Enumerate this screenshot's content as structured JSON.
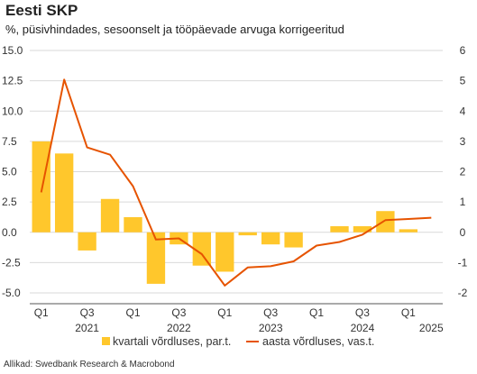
{
  "title": "Eesti SKP",
  "subtitle": "%, püsivhindades, sesoonselt ja tööpäevade arvuga korrigeeritud",
  "source": "Allikad: Swedbank Research & Macrobond",
  "colors": {
    "bar": "#FFC72C",
    "line": "#E65300",
    "grid": "#d9d9d9",
    "axis": "#555555"
  },
  "chart_data": {
    "type": "bar",
    "categories": [
      "2021 Q1",
      "2021 Q2",
      "2021 Q3",
      "2021 Q4",
      "2022 Q1",
      "2022 Q2",
      "2022 Q3",
      "2022 Q4",
      "2023 Q1",
      "2023 Q2",
      "2023 Q3",
      "2023 Q4",
      "2024 Q1",
      "2024 Q2",
      "2024 Q3",
      "2024 Q4",
      "2025 Q1",
      "2025 Q2"
    ],
    "y_left": {
      "min": -5.0,
      "max": 15.0,
      "step": 2.5,
      "ticks": [
        "15.0",
        "12.5",
        "10.0",
        "7.5",
        "5.0",
        "2.5",
        "0.0",
        "-2.5",
        "-5.0"
      ]
    },
    "y_right": {
      "min": -2,
      "max": 6,
      "step": 1,
      "ticks": [
        "6",
        "5",
        "4",
        "3",
        "2",
        "1",
        "0",
        "-1",
        "-2"
      ]
    },
    "x_quarter_labels": [
      "Q1",
      "",
      "Q3",
      "",
      "Q1",
      "",
      "Q3",
      "",
      "Q1",
      "",
      "Q3",
      "",
      "Q1",
      "",
      "Q3",
      "",
      "Q1",
      ""
    ],
    "x_year_labels": [
      {
        "index": 2,
        "label": "2021"
      },
      {
        "index": 6,
        "label": "2022"
      },
      {
        "index": 10,
        "label": "2023"
      },
      {
        "index": 14,
        "label": "2024"
      },
      {
        "index": 17,
        "label": "2025"
      }
    ],
    "series": [
      {
        "name": "kvartali võrdluses, par.t.",
        "type": "bar",
        "axis": "right",
        "values": [
          3.0,
          2.6,
          -0.6,
          1.1,
          0.5,
          -1.7,
          -0.4,
          -1.1,
          -1.3,
          -0.1,
          -0.4,
          -0.5,
          0.0,
          0.2,
          0.2,
          0.7,
          0.1,
          0.0
        ]
      },
      {
        "name": "aasta võrdluses, vas.t.",
        "type": "line",
        "axis": "left",
        "values": [
          3.3,
          12.6,
          7.0,
          6.4,
          3.8,
          -0.6,
          -0.5,
          -1.8,
          -4.4,
          -2.9,
          -2.8,
          -2.4,
          -1.1,
          -0.8,
          -0.2,
          1.0,
          1.1,
          1.2
        ]
      }
    ],
    "legend_position": "bottom",
    "grid": true
  }
}
